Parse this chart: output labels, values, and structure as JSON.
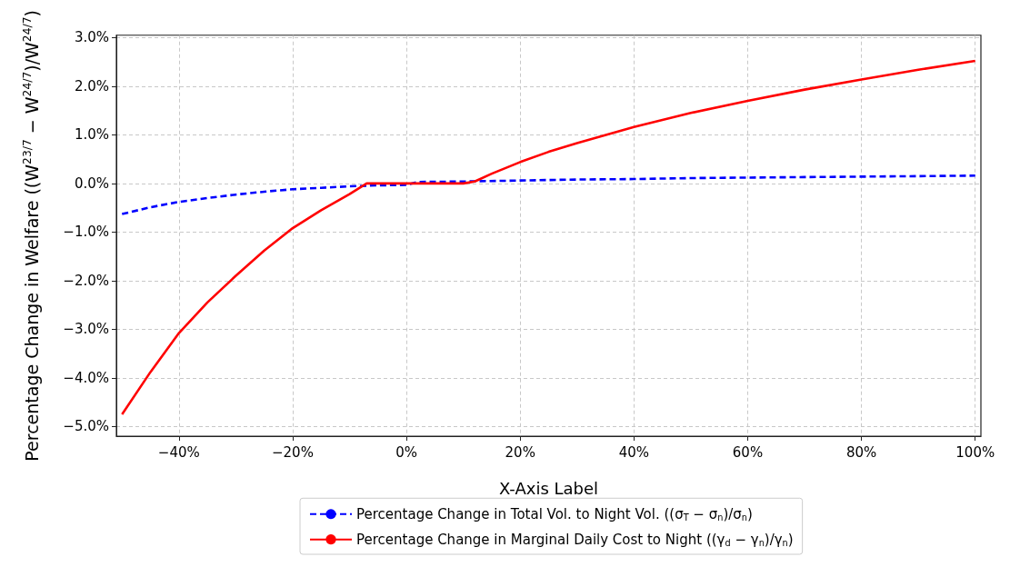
{
  "chart_data": {
    "type": "line",
    "xlabel": "X-Axis Label",
    "ylabel": "Percentage Change in Welfare ((W$^{23/7}$ − W$^{24/7}$)/W$^{24/7}$)",
    "series": [
      {
        "name": "Percentage Change in Total Vol. to Night Vol. ((σ$_{T}$ − σ$_{n}$)/σ$_{n}$)",
        "color": "#0000ff",
        "line_style": "dashed",
        "x": [
          -50,
          -45,
          -40,
          -35,
          -30,
          -25,
          -20,
          -15,
          -10,
          -5,
          0,
          2,
          10,
          20,
          30,
          40,
          50,
          60,
          70,
          80,
          90,
          100
        ],
        "values": [
          -0.63,
          -0.49,
          -0.38,
          -0.3,
          -0.23,
          -0.17,
          -0.12,
          -0.09,
          -0.06,
          -0.04,
          -0.03,
          0.03,
          0.04,
          0.06,
          0.08,
          0.09,
          0.11,
          0.12,
          0.13,
          0.14,
          0.15,
          0.16
        ]
      },
      {
        "name": "Percentage Change in Marginal Daily Cost to Night ((γ$_{d}$ − γ$_{n}$)/γ$_{n}$)",
        "color": "#ff0000",
        "line_style": "solid",
        "x": [
          -50,
          -45,
          -40,
          -35,
          -30,
          -25,
          -20,
          -15,
          -10,
          -7,
          0,
          10,
          12,
          15,
          20,
          25,
          30,
          40,
          50,
          60,
          70,
          80,
          90,
          100
        ],
        "values": [
          -4.75,
          -3.88,
          -3.08,
          -2.45,
          -1.9,
          -1.38,
          -0.92,
          -0.55,
          -0.22,
          0,
          0,
          0,
          0.04,
          0.2,
          0.44,
          0.65,
          0.83,
          1.16,
          1.45,
          1.7,
          1.93,
          2.14,
          2.34,
          2.52
        ]
      }
    ],
    "xlim": [
      -51,
      101
    ],
    "xticks": [
      {
        "value": -40,
        "label": "−40%"
      },
      {
        "value": -20,
        "label": "−20%"
      },
      {
        "value": 0,
        "label": "0%"
      },
      {
        "value": 20,
        "label": "20%"
      },
      {
        "value": 40,
        "label": "40%"
      },
      {
        "value": 60,
        "label": "60%"
      },
      {
        "value": 80,
        "label": "80%"
      },
      {
        "value": 100,
        "label": "100%"
      }
    ],
    "ylim": [
      -5.2,
      3.05
    ],
    "yticks": [
      {
        "value": -5,
        "label": "−5.0%"
      },
      {
        "value": -4,
        "label": "−4.0%"
      },
      {
        "value": -3,
        "label": "−3.0%"
      },
      {
        "value": -2,
        "label": "−2.0%"
      },
      {
        "value": -1,
        "label": "−1.0%"
      },
      {
        "value": 0,
        "label": "0.0%"
      },
      {
        "value": 1,
        "label": "1.0%"
      },
      {
        "value": 2,
        "label": "2.0%"
      },
      {
        "value": 3,
        "label": "3.0%"
      }
    ],
    "grid": true,
    "legend": "bottom",
    "marker": "none"
  }
}
